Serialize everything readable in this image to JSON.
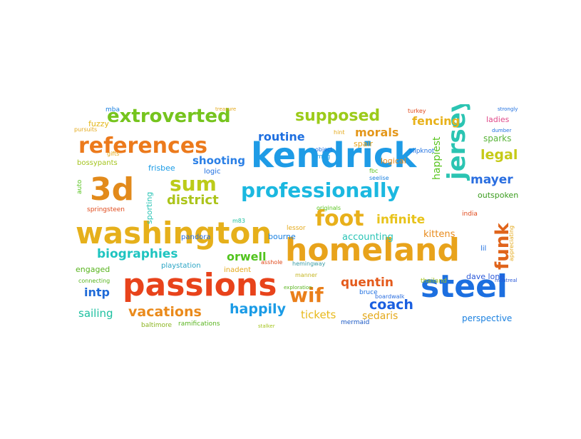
{
  "words": [
    {
      "text": "kendrick",
      "color": "#1e9be6"
    },
    {
      "text": "homeland",
      "color": "#e8a31b"
    },
    {
      "text": "passions",
      "color": "#e8431b"
    },
    {
      "text": "washington",
      "color": "#e6b01b"
    },
    {
      "text": "steel",
      "color": "#1c6fe0"
    },
    {
      "text": "professionally",
      "color": "#1bb8e0"
    },
    {
      "text": "references",
      "color": "#ec7a1c"
    },
    {
      "text": "jersey",
      "color": "#2bc4b2"
    },
    {
      "text": "extroverted",
      "color": "#76c41e"
    },
    {
      "text": "3d",
      "color": "#e28a1b"
    },
    {
      "text": "funk",
      "color": "#e0641b"
    },
    {
      "text": "foot",
      "color": "#e8b01b"
    },
    {
      "text": "sum",
      "color": "#bccb19"
    },
    {
      "text": "supposed",
      "color": "#9ccb1a"
    },
    {
      "text": "biographies",
      "color": "#1ec4c0"
    },
    {
      "text": "vacations",
      "color": "#ea8a1b"
    },
    {
      "text": "district",
      "color": "#acc41a"
    },
    {
      "text": "wif",
      "color": "#ea7f1b"
    },
    {
      "text": "happily",
      "color": "#1a9be6"
    },
    {
      "text": "infinite",
      "color": "#e8c31b"
    },
    {
      "text": "quentin",
      "color": "#e45a1b"
    },
    {
      "text": "legal",
      "color": "#c6ca18"
    },
    {
      "text": "coach",
      "color": "#1a5fe0"
    },
    {
      "text": "mayer",
      "color": "#2a6ee0"
    },
    {
      "text": "orwell",
      "color": "#52c41e"
    },
    {
      "text": "shooting",
      "color": "#2a7fe6"
    },
    {
      "text": "routine",
      "color": "#1e6fe0"
    },
    {
      "text": "morals",
      "color": "#e4971b"
    },
    {
      "text": "fencing",
      "color": "#e8b21b"
    },
    {
      "text": "intp",
      "color": "#1e6ad8"
    },
    {
      "text": "tickets",
      "color": "#e8b91b"
    },
    {
      "text": "sedaris",
      "color": "#e4a91b"
    },
    {
      "text": "sailing",
      "color": "#1ec0a0"
    },
    {
      "text": "accounting",
      "color": "#2ac4b6"
    },
    {
      "text": "kittens",
      "color": "#e88a1b"
    },
    {
      "text": "perspective",
      "color": "#1a80e0"
    },
    {
      "text": "dave lone",
      "color": "#2a58d8"
    },
    {
      "text": "outspoken",
      "color": "#3a9c1e"
    },
    {
      "text": "sparks",
      "color": "#5ab43a"
    },
    {
      "text": "happiest",
      "color": "#58c41e"
    },
    {
      "text": "logical",
      "color": "#e88a1b"
    },
    {
      "text": "spair",
      "color": "#e8a31b"
    },
    {
      "text": "bourne",
      "color": "#1a80e0"
    },
    {
      "text": "pandora",
      "color": "#2a6ee0"
    },
    {
      "text": "engaged",
      "color": "#58b41e"
    },
    {
      "text": "playstation",
      "color": "#2aa4c4"
    },
    {
      "text": "inadent",
      "color": "#e4a91b"
    },
    {
      "text": "ramifications",
      "color": "#58b41e"
    },
    {
      "text": "baltimore",
      "color": "#8ab41e"
    },
    {
      "text": "bruce",
      "color": "#1e6fe0"
    },
    {
      "text": "mermaid",
      "color": "#1a58c4"
    },
    {
      "text": "thailand",
      "color": "#a4c41e"
    },
    {
      "text": "hemingway",
      "color": "#3a9ca4"
    },
    {
      "text": "manner",
      "color": "#c4b41e"
    },
    {
      "text": "springsteen",
      "color": "#e04a1b"
    },
    {
      "text": "sporting",
      "color": "#2ac4b6"
    },
    {
      "text": "frisbee",
      "color": "#1a9be6"
    },
    {
      "text": "logic",
      "color": "#1e6fe0"
    },
    {
      "text": "fuzzy",
      "color": "#e4b81b"
    },
    {
      "text": "bossypants",
      "color": "#a4c41e"
    },
    {
      "text": "ladies",
      "color": "#e04a8a"
    },
    {
      "text": "lessor",
      "color": "#e4a91b"
    },
    {
      "text": "slipknot",
      "color": "#1e6fe0"
    },
    {
      "text": "auto",
      "color": "#58c41e"
    },
    {
      "text": "lil",
      "color": "#1e6fe0"
    },
    {
      "text": "india",
      "color": "#e04a1b"
    },
    {
      "text": "msg",
      "color": "#1a9be6"
    },
    {
      "text": "mba",
      "color": "#1a80e0"
    },
    {
      "text": "turkey",
      "color": "#e04a1b"
    },
    {
      "text": "originals",
      "color": "#58c41e"
    },
    {
      "text": "m83",
      "color": "#1ec0a0"
    },
    {
      "text": "hint",
      "color": "#e4a91b"
    },
    {
      "text": "pursuits",
      "color": "#e4a91b"
    },
    {
      "text": "gifts",
      "color": "#e4a91b"
    },
    {
      "text": "object",
      "color": "#1e6fe0"
    },
    {
      "text": "connecting",
      "color": "#58b41e"
    },
    {
      "text": "boardwalk",
      "color": "#2a6ee0"
    },
    {
      "text": "appreciating",
      "color": "#e4a91b"
    },
    {
      "text": "montreal",
      "color": "#2a58d8"
    },
    {
      "text": "strongly",
      "color": "#1e6fe0"
    },
    {
      "text": "fbc",
      "color": "#58c41e"
    },
    {
      "text": "asshole",
      "color": "#e04a1b"
    },
    {
      "text": "exploration",
      "color": "#58b41e"
    },
    {
      "text": "seelise",
      "color": "#1a80e0"
    },
    {
      "text": "dumber",
      "color": "#1e6fe0"
    },
    {
      "text": "stalker",
      "color": "#a4c41e"
    },
    {
      "text": "treasure",
      "color": "#e4a91b"
    }
  ]
}
